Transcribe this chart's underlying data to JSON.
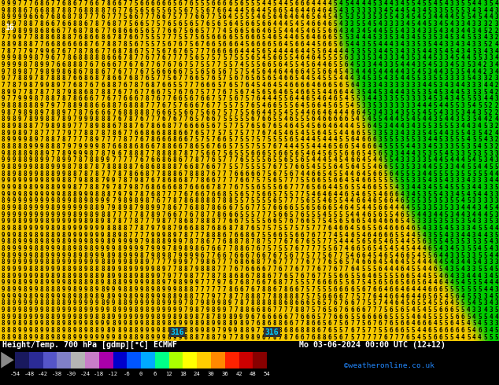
{
  "title_left": "Height/Temp. 700 hPa [gdmp][°C] ECMWF",
  "title_right": "Mo 03-06-2024 00:00 UTC (12+12)",
  "credit": "©weatheronline.co.uk",
  "colorbar_levels": [
    -54,
    -48,
    -42,
    -38,
    -30,
    -24,
    -18,
    -12,
    -6,
    0,
    6,
    12,
    18,
    24,
    30,
    36,
    42,
    48,
    54
  ],
  "colorbar_tick_labels": [
    "-54",
    "-48",
    "-42",
    "-38",
    "-30",
    "-24",
    "-18",
    "-12",
    "-6",
    "0",
    "6",
    "12",
    "18",
    "24",
    "30",
    "36",
    "42",
    "48",
    "54"
  ],
  "colorbar_colors": [
    "#19195e",
    "#2b2b96",
    "#5555c8",
    "#8080c8",
    "#b4b4b4",
    "#c87dc8",
    "#aa00aa",
    "#0000cc",
    "#0055ff",
    "#00aaff",
    "#00ff88",
    "#aaff00",
    "#ffff00",
    "#ffcc00",
    "#ff8800",
    "#ff2200",
    "#cc0000",
    "#880000"
  ],
  "bg_color": "#000000",
  "map_bg_yellow": "#f5c800",
  "map_bg_green": "#00cc00",
  "map_bg_dark_green": "#006600",
  "digit_color_on_yellow": "#000000",
  "digit_color_on_green": "#000000",
  "contour_line_color": "#aaaaaa",
  "rows": 50,
  "cols": 90,
  "font_size": 5.5
}
